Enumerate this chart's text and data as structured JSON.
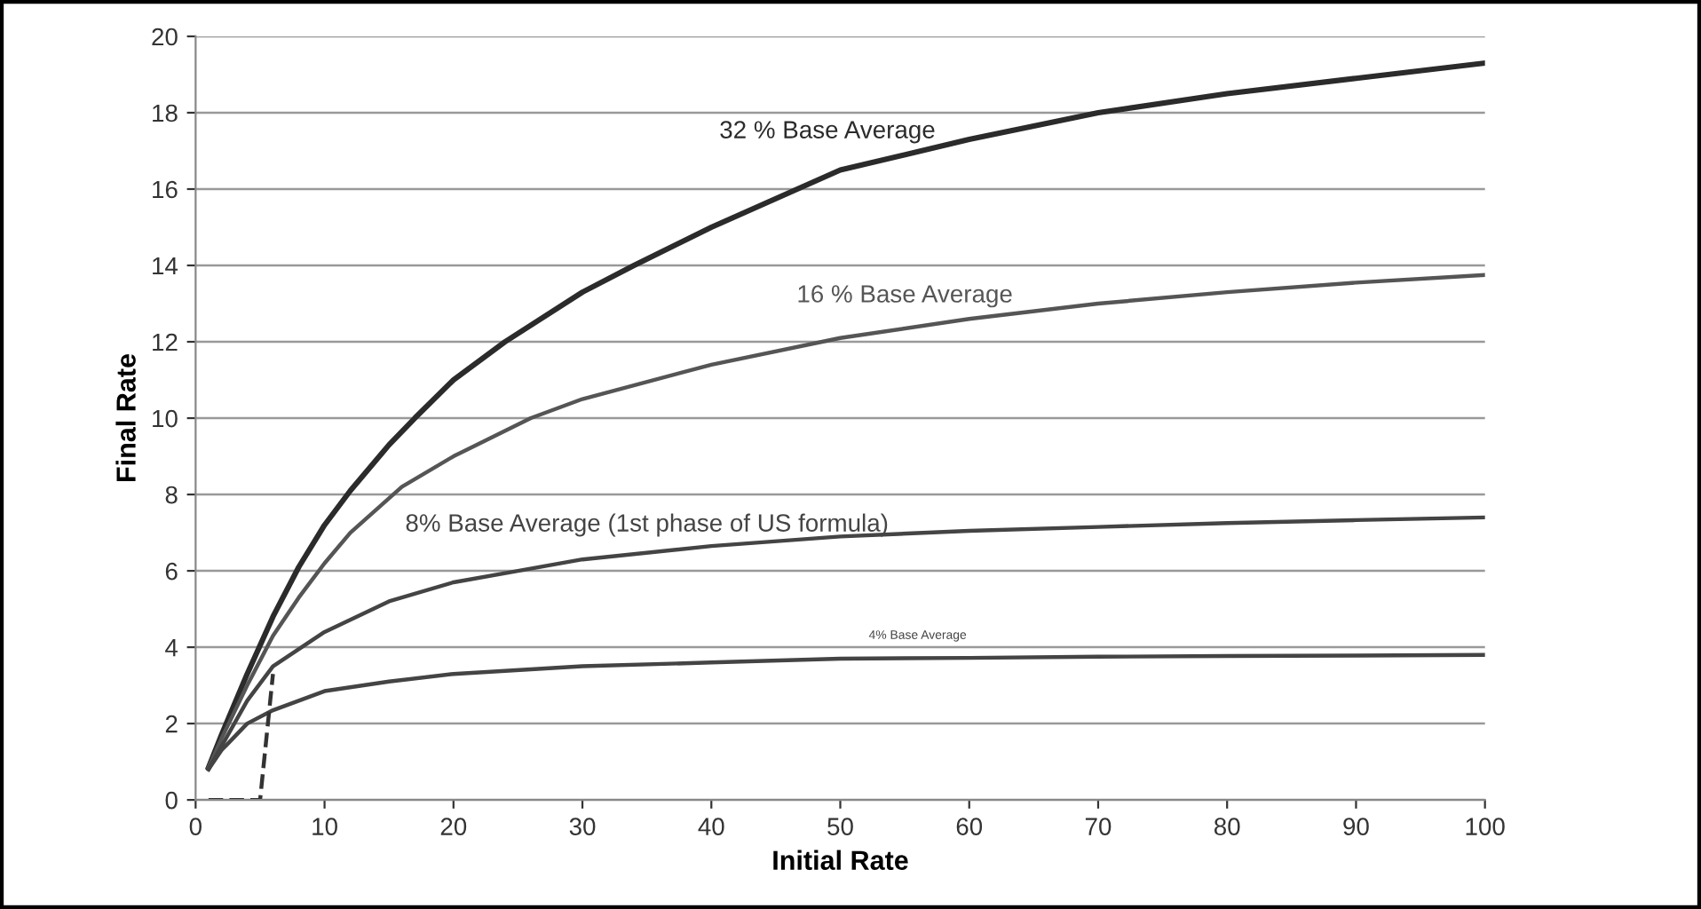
{
  "chart_data": {
    "type": "line",
    "xlabel": "Initial Rate",
    "ylabel": "Final Rate",
    "xlim": [
      0,
      100
    ],
    "ylim": [
      0,
      20
    ],
    "xticks": [
      0,
      10,
      20,
      30,
      40,
      50,
      60,
      70,
      80,
      90,
      100
    ],
    "yticks": [
      0,
      2,
      4,
      6,
      8,
      10,
      12,
      14,
      16,
      18,
      20
    ],
    "grid": "y",
    "marker": "none",
    "series": [
      {
        "name": "32 % Base Average",
        "color": "#2b2b2b",
        "x": [
          1,
          2,
          4,
          6,
          8,
          10,
          12,
          15,
          17,
          20,
          24,
          30,
          34,
          40,
          50,
          60,
          70,
          80,
          90,
          100
        ],
        "values": [
          0.85,
          1.7,
          3.3,
          4.8,
          6.1,
          7.2,
          8.1,
          9.3,
          10,
          11,
          12,
          13.3,
          14,
          15,
          16.5,
          17.3,
          18,
          18.5,
          18.9,
          19.3
        ]
      },
      {
        "name": "16 % Base Average",
        "color": "#555555",
        "x": [
          1,
          2,
          4,
          6,
          8,
          10,
          12,
          16,
          20,
          26,
          30,
          40,
          50,
          60,
          70,
          80,
          90,
          100
        ],
        "values": [
          0.85,
          1.6,
          3.0,
          4.3,
          5.3,
          6.2,
          7,
          8.2,
          9,
          10,
          10.5,
          11.4,
          12.1,
          12.6,
          13,
          13.3,
          13.55,
          13.75
        ]
      },
      {
        "name": "8% Base Average (1st phase of US formula)",
        "color": "#444444",
        "x": [
          1,
          2,
          4,
          6,
          10,
          15,
          20,
          25,
          30,
          40,
          50,
          60,
          70,
          80,
          90,
          100
        ],
        "values": [
          0.8,
          1.4,
          2.6,
          3.5,
          4.4,
          5.2,
          5.7,
          6.0,
          6.3,
          6.65,
          6.9,
          7.05,
          7.15,
          7.25,
          7.33,
          7.4
        ]
      },
      {
        "name": "4% Base Average",
        "color": "#444444",
        "x": [
          1,
          2,
          4,
          6,
          10,
          15,
          20,
          30,
          40,
          50,
          60,
          70,
          80,
          90,
          100
        ],
        "values": [
          0.8,
          1.3,
          2.0,
          2.35,
          2.85,
          3.1,
          3.3,
          3.5,
          3.6,
          3.7,
          3.72,
          3.75,
          3.77,
          3.78,
          3.8
        ]
      },
      {
        "color": "#333333",
        "line_style": "dashed",
        "x": [
          1,
          5,
          6
        ],
        "values": [
          0,
          0,
          3.3
        ]
      }
    ]
  }
}
